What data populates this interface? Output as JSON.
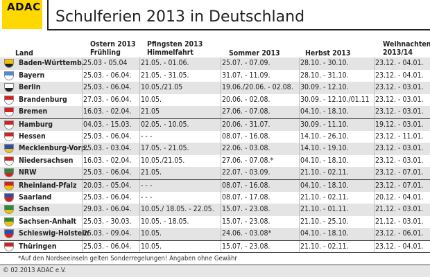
{
  "brand": {
    "logo_text": "ADAC",
    "logo_color": "#ffd800"
  },
  "title": "Schulferien 2013 in Deutschland",
  "headers": {
    "land": "Land",
    "ostern": [
      "Ostern 2013",
      "Frühling"
    ],
    "pfingsten": [
      "Pfingsten 2013",
      "Himmelfahrt"
    ],
    "sommer": "Sommer 2013",
    "herbst": "Herbst 2013",
    "weihnachten": [
      "Weihnachten",
      "2013/14"
    ]
  },
  "rows": [
    {
      "land": "Baden-Württemb.",
      "ostern": "25.03 - 05.04",
      "pfingsten": "21.05. - 01.06.",
      "sommer": "25.07. - 07.09.",
      "herbst": "28.10. - 30.10.",
      "weihnachten": "23.12. - 04.01.",
      "crest": [
        "#f2c200",
        "#222222"
      ]
    },
    {
      "land": "Bayern",
      "ostern": "25.03. - 06.04.",
      "pfingsten": "21.05. - 31.05.",
      "sommer": "31.07. - 11.09.",
      "herbst": "28.10. - 31.10.",
      "weihnachten": "23.12. - 04.01.",
      "crest": [
        "#4a8fd6",
        "#ffffff"
      ]
    },
    {
      "land": "Berlin",
      "ostern": "25.03. - 06.04.",
      "pfingsten": "10.05./21.05",
      "sommer": "19.06./20.06. - 02.08.",
      "herbst": "30.09. - 12.10.",
      "weihnachten": "23.12. - 03.01.",
      "crest": [
        "#ffffff",
        "#222222"
      ]
    },
    {
      "land": "Brandenburg",
      "ostern": "27.03. - 06.04.",
      "pfingsten": "10.05.",
      "sommer": "20.06. - 02.08.",
      "herbst": "30.09. - 12.10./01.11",
      "weihnachten": "23.12. - 03.01.",
      "crest": [
        "#d42020",
        "#ffffff"
      ]
    },
    {
      "land": "Bremen",
      "ostern": "16.03. - 02.04.",
      "pfingsten": "21.05",
      "sommer": "27.06. - 07.08.",
      "herbst": "04.10. - 18.10.",
      "weihnachten": "23.12. - 03.01.",
      "crest": [
        "#d42020",
        "#ffffff"
      ]
    },
    {
      "land": "Hamburg",
      "ostern": "04.03. - 15.03.",
      "pfingsten": "02.05. - 10.05.",
      "sommer": "20.06. - 31.07.",
      "herbst": "30.09. - 11.10.",
      "weihnachten": "19.12. - 03.01.",
      "crest": [
        "#d42020",
        "#ffffff"
      ]
    },
    {
      "land": "Hessen",
      "ostern": "25.03. - 06.04.",
      "pfingsten": "- - -",
      "sommer": "08.07. - 16.08.",
      "herbst": "14.10. - 26.10.",
      "weihnachten": "23.12. - 11.01.",
      "crest": [
        "#d42020",
        "#ffffff"
      ]
    },
    {
      "land": "Mecklenburg-Vorp.",
      "ostern": "25.03. - 03.04.",
      "pfingsten": "17.05. - 21.05.",
      "sommer": "22.06. - 03.08.",
      "herbst": "14.10. - 19.10.",
      "weihnachten": "23.12. - 03.01.",
      "crest": [
        "#2a4fa8",
        "#f2c200"
      ]
    },
    {
      "land": "Niedersachsen",
      "ostern": "16.03. - 02.04.",
      "pfingsten": "10.05./21.05.",
      "sommer": "27.06. - 07.08.*",
      "herbst": "04.10. - 18.10.",
      "weihnachten": "23.12. - 03.01.",
      "crest": [
        "#d42020",
        "#ffffff"
      ]
    },
    {
      "land": "NRW",
      "ostern": "25.03. - 06.04.",
      "pfingsten": "21.05.",
      "sommer": "22.07. - 03.09.",
      "herbst": "21.10. - 02.11.",
      "weihnachten": "23.12. - 07.01.",
      "crest": [
        "#2a8a3a",
        "#d42020"
      ]
    },
    {
      "land": "Rheinland-Pfalz",
      "ostern": "20.03. - 05.04.",
      "pfingsten": "- - -",
      "sommer": "08.07. - 16.08.",
      "herbst": "04.10. - 18.10.",
      "weihnachten": "23.12. - 07.01.",
      "crest": [
        "#d42020",
        "#f2c200"
      ]
    },
    {
      "land": "Saarland",
      "ostern": "25.03. - 06.04.",
      "pfingsten": "- - -",
      "sommer": "08.07. - 17.08.",
      "herbst": "21.10. - 02.11.",
      "weihnachten": "20.12. - 04.01.",
      "crest": [
        "#2a4fa8",
        "#d42020"
      ]
    },
    {
      "land": "Sachsen",
      "ostern": "29.03. - 06.04.",
      "pfingsten": "10.05./ 18.05. - 22.05.",
      "sommer": "15.07. - 23.08.",
      "herbst": "21.10. - 01.11.",
      "weihnachten": "21.12. - 03.01.",
      "crest": [
        "#2a8a3a",
        "#f2c200"
      ]
    },
    {
      "land": "Sachsen-Anhalt",
      "ostern": "25.03. - 30.03.",
      "pfingsten": "10.05. - 18.05.",
      "sommer": "15.07. - 23.08.",
      "herbst": "21.10. - 25.10.",
      "weihnachten": "21.12. - 03.01.",
      "crest": [
        "#2a8a3a",
        "#f2c200"
      ]
    },
    {
      "land": "Schleswig-Holstein",
      "ostern": "25.03. - 09.04.",
      "pfingsten": "10.05.",
      "sommer": "24.06. - 03.08*",
      "herbst": "04.10. - 18.10.",
      "weihnachten": "23.12. - 06.01.",
      "crest": [
        "#2a4fa8",
        "#d42020"
      ]
    },
    {
      "land": "Thüringen",
      "ostern": "25.03. - 06.04.",
      "pfingsten": "10.05.",
      "sommer": "15.07. - 23.08.",
      "herbst": "21.10. - 02.11.",
      "weihnachten": "23.12. - 04.01.",
      "crest": [
        "#d42020",
        "#ffffff"
      ]
    }
  ],
  "footnote": "*Auf den Nordseeinseln gelten Sonderregelungen!   Angaben ohne Gewähr",
  "copyright": "© 02.2013 ADAC e.V."
}
